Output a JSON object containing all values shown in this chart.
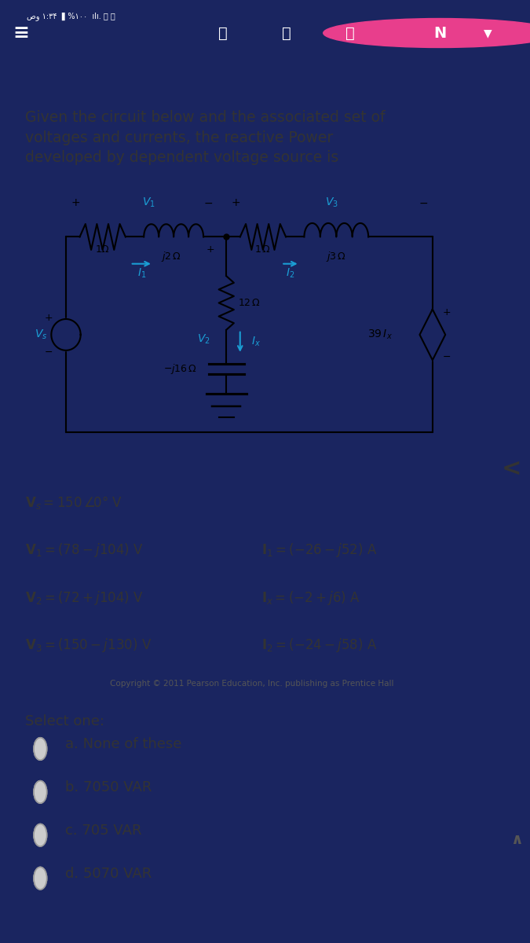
{
  "title_line1": "Given the circuit below and the associated set of",
  "title_line2": "voltages and currents, the reactive Power",
  "title_line3": "developed by dependent voltage source is",
  "nav_bg": "#1a2560",
  "content_bg": "#ffffff",
  "accent_color": "#f0a500",
  "circuit_color": "#000000",
  "label_color": "#1a9ed4",
  "text_color": "#333333",
  "vs_label": "V_{s} = 150 \\angle 0^\\circ \\text{ V}",
  "v1_label": "V_{1} = (78 - j104)\\text{ V}",
  "v2_label": "V_{2} = (72 + j104)\\text{ V}",
  "v3_label": "V_{3} = (150 - j130)\\text{ V}",
  "i1_label": "I_{1} = (-26 - j52)\\text{ A}",
  "ix_label": "I_{x} = (-2 + j6)\\text{ A}",
  "i2_label": "I_{2} = (-24 - j58)\\text{ A}",
  "copyright": "Copyright © 2011 Pearson Education, Inc. publishing as Prentice Hall",
  "options": [
    "a. None of these",
    "b. 7050 VAR",
    "c. 705 VAR",
    "d. 5070 VAR"
  ],
  "select_text": "Select one:"
}
